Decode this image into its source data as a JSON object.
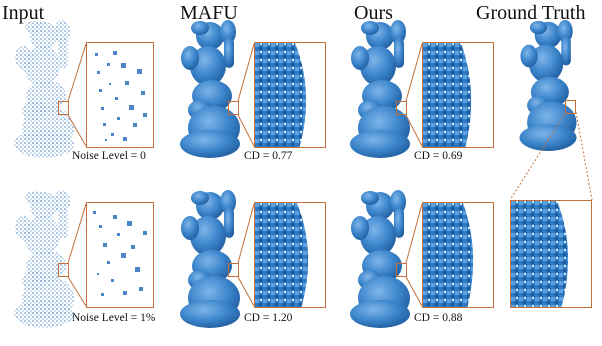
{
  "columns": {
    "input": "Input",
    "mafu": "MAFU",
    "ours": "Ours",
    "ground_truth": "Ground Truth"
  },
  "rows": [
    {
      "noise_label": "Noise Level = 0",
      "mafu_cd": "CD = 0.77",
      "ours_cd": "CD = 0.69"
    },
    {
      "noise_label": "Noise Level = 1%",
      "mafu_cd": "CD = 1.20",
      "ours_cd": "CD = 0.88"
    }
  ],
  "colors": {
    "accent_border": "#c5703a",
    "surface_blue": "#3d86cc",
    "surface_dark": "#1f5c9e",
    "point_blue": "#4a86c8"
  }
}
